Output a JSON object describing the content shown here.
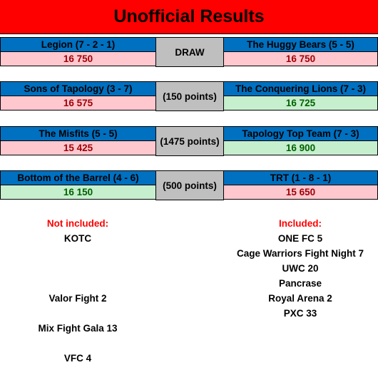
{
  "title": "Unofficial Results",
  "matches": [
    {
      "left": {
        "name": "Legion (7 - 2 - 1)",
        "score": "16 750",
        "status": "lose"
      },
      "middle": "DRAW",
      "right": {
        "name": "The Huggy Bears (5 - 5)",
        "score": "16 750",
        "status": "lose"
      }
    },
    {
      "left": {
        "name": "Sons of Tapology (3 - 7)",
        "score": "16 575",
        "status": "lose"
      },
      "middle": "(150 points)",
      "right": {
        "name": "The Conquering Lions (7 - 3)",
        "score": "16 725",
        "status": "win"
      }
    },
    {
      "left": {
        "name": "The Misfits (5 - 5)",
        "score": "15 425",
        "status": "lose"
      },
      "middle": "(1475 points)",
      "right": {
        "name": "Tapology Top Team (7 - 3)",
        "score": "16 900",
        "status": "win"
      }
    },
    {
      "left": {
        "name": "Bottom of the Barrel (4 - 6)",
        "score": "16 150",
        "status": "win"
      },
      "middle": "(500 points)",
      "right": {
        "name": "TRT (1 - 8 - 1)",
        "score": "15 650",
        "status": "lose"
      }
    }
  ],
  "not_included": {
    "header": "Not included:",
    "items": [
      "KOTC",
      "Valor Fight 2",
      "Mix Fight Gala 13",
      "VFC 4"
    ]
  },
  "included": {
    "header": "Included:",
    "items": [
      "ONE FC 5",
      "Cage Warriors Fight Night 7",
      "UWC 20",
      "Pancrase",
      "Royal Arena 2",
      "PXC 33"
    ]
  }
}
